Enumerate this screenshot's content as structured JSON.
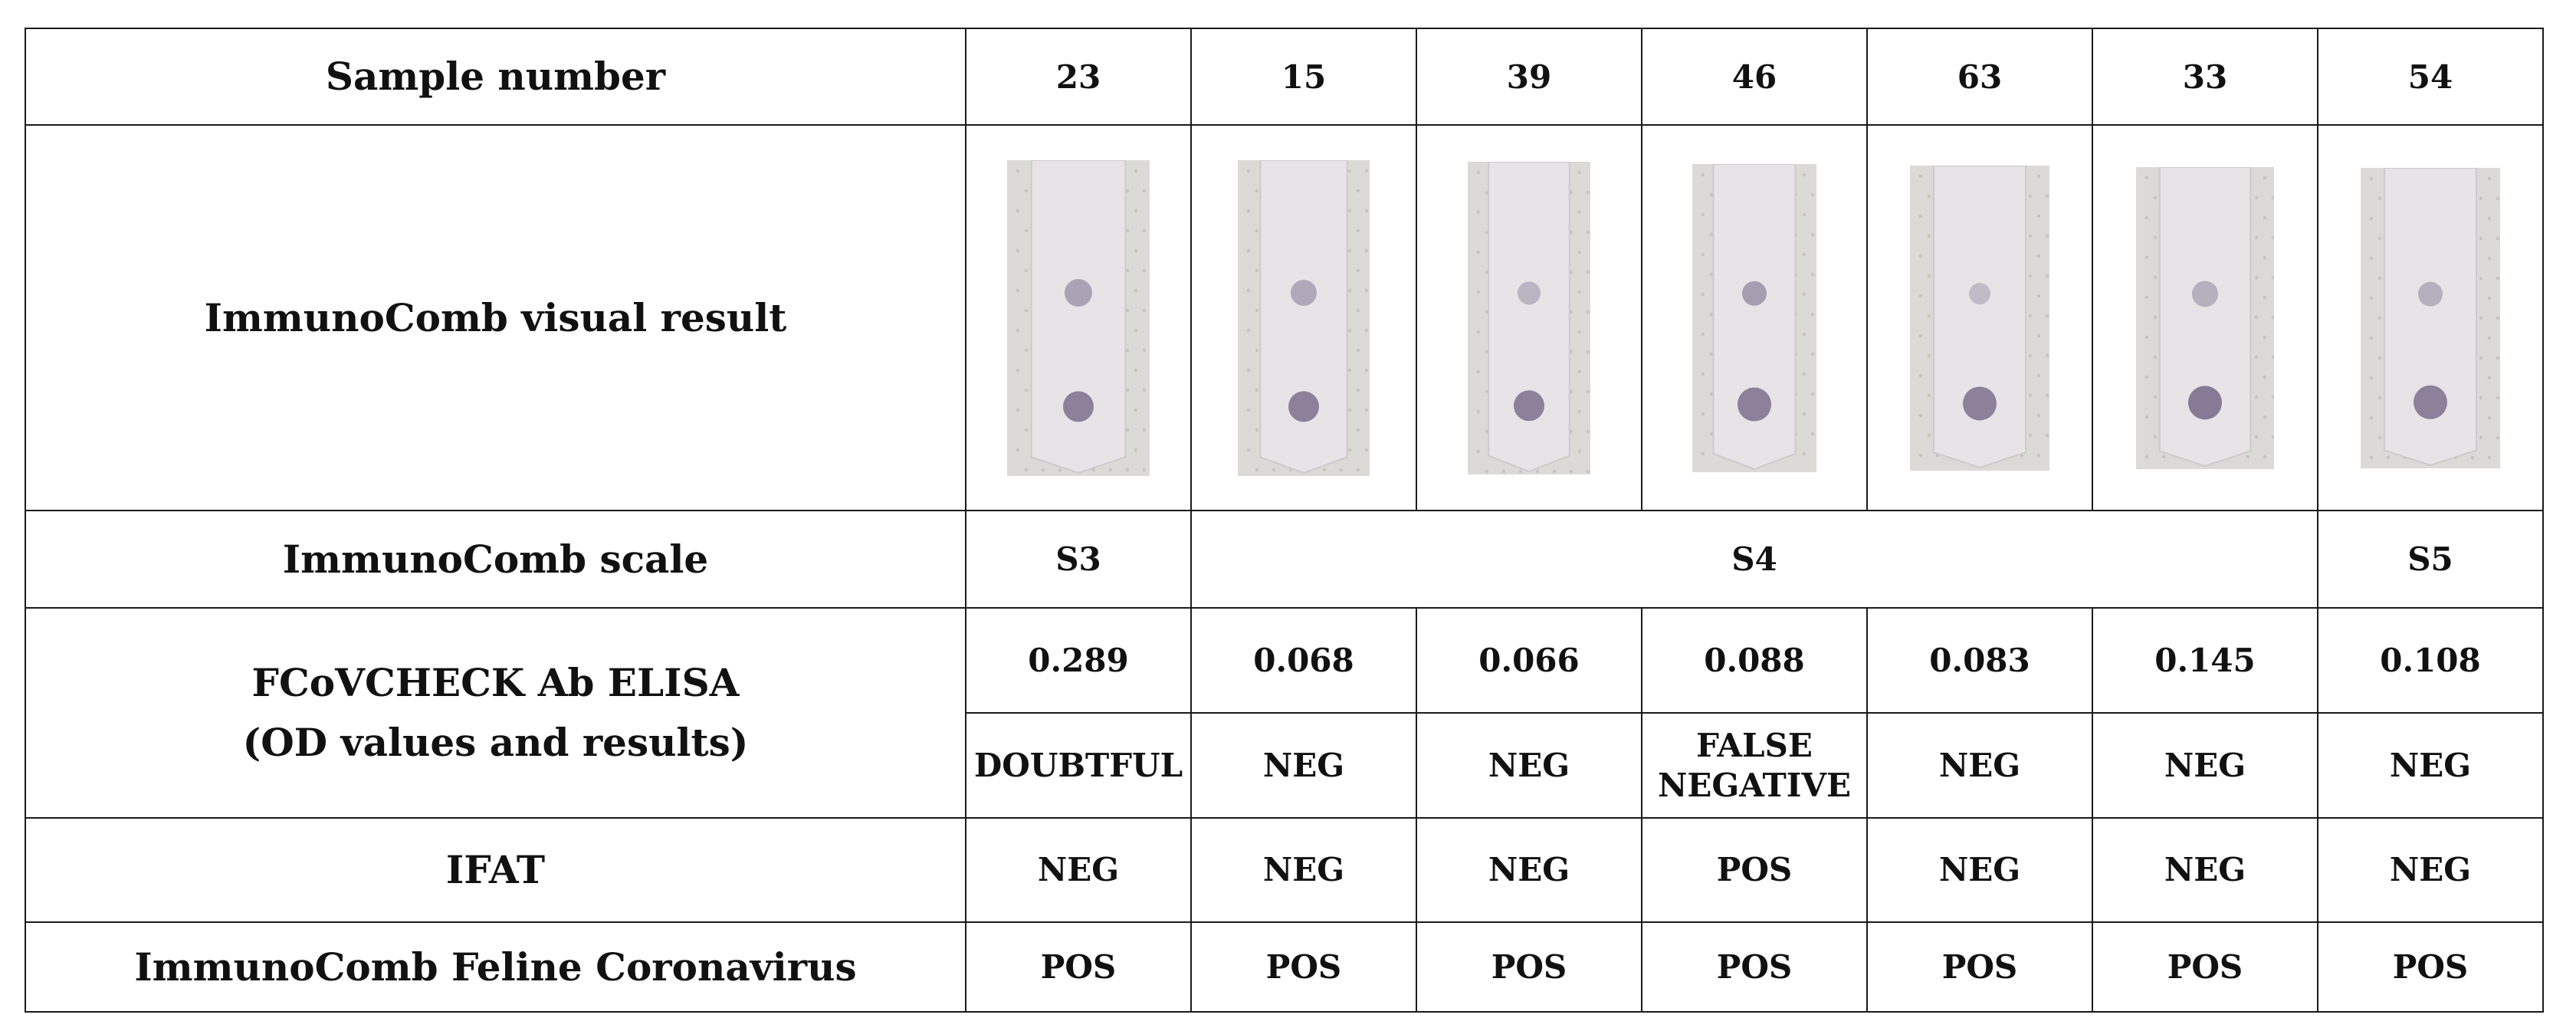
{
  "table": {
    "row_labels": {
      "sample_number": "Sample number",
      "visual_result": "ImmunoComb visual result",
      "scale": "ImmunoComb scale",
      "elisa_line1": "FCoVCHECK Ab ELISA",
      "elisa_line2": "(OD values and results)",
      "ifat": "IFAT",
      "immunocomb_fcov": "ImmunoComb Feline Coronavirus"
    },
    "samples": [
      {
        "number": "23",
        "od": "0.289",
        "elisa_result": "DOUBTFUL",
        "ifat": "NEG",
        "immunocomb": "POS"
      },
      {
        "number": "15",
        "od": "0.068",
        "elisa_result": "NEG",
        "ifat": "NEG",
        "immunocomb": "POS"
      },
      {
        "number": "39",
        "od": "0.066",
        "elisa_result": "NEG",
        "ifat": "NEG",
        "immunocomb": "POS"
      },
      {
        "number": "46",
        "od": "0.088",
        "elisa_result_line1": "FALSE",
        "elisa_result_line2": "NEGATIVE",
        "ifat": "POS",
        "immunocomb": "POS"
      },
      {
        "number": "63",
        "od": "0.083",
        "elisa_result": "NEG",
        "ifat": "NEG",
        "immunocomb": "POS"
      },
      {
        "number": "33",
        "od": "0.145",
        "elisa_result": "NEG",
        "ifat": "NEG",
        "immunocomb": "POS"
      },
      {
        "number": "54",
        "od": "0.108",
        "elisa_result": "NEG",
        "ifat": "NEG",
        "immunocomb": "POS"
      }
    ],
    "scale_groups": {
      "first": "S3",
      "middle": "S4",
      "last": "S5"
    },
    "colors": {
      "border": "#1a1a1a",
      "text": "#111111",
      "strip": "#e7e3e6",
      "spot": "#7b6e8d",
      "backing": "#dcdad6"
    }
  }
}
